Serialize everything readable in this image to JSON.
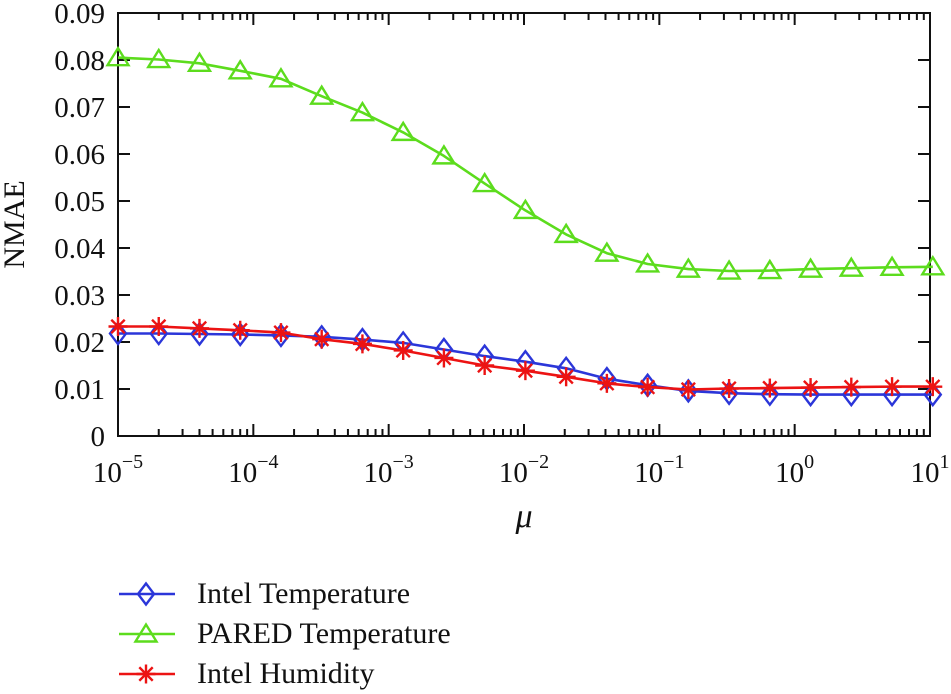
{
  "figure": {
    "background": "#ffffff",
    "axis_color": "#111111",
    "text_color": "#111111"
  },
  "chart_data": {
    "type": "line",
    "title": "",
    "xlabel": "μ",
    "ylabel": "NMAE",
    "x_scale": "log",
    "xlim": [
      1e-05,
      10
    ],
    "ylim": [
      0,
      0.09
    ],
    "grid": false,
    "legend_position": "below-left",
    "x_ticks": [
      1e-05,
      0.0001,
      0.001,
      0.01,
      0.1,
      1,
      10
    ],
    "x_tick_exponents": [
      -5,
      -4,
      -3,
      -2,
      -1,
      0,
      1
    ],
    "y_ticks": [
      0,
      0.01,
      0.02,
      0.03,
      0.04,
      0.05,
      0.06,
      0.07,
      0.08,
      0.09
    ],
    "y_tick_labels": [
      "0",
      "0.01",
      "0.02",
      "0.03",
      "0.04",
      "0.05",
      "0.06",
      "0.07",
      "0.08",
      "0.09"
    ],
    "x": [
      1e-05,
      2e-05,
      4e-05,
      8e-05,
      0.00016,
      0.00032,
      0.00064,
      0.00128,
      0.00256,
      0.00512,
      0.01024,
      0.02048,
      0.04096,
      0.08192,
      0.16384,
      0.32768,
      0.65536,
      1.31072,
      2.62144,
      5.24288,
      10.48576
    ],
    "series": [
      {
        "name": "Intel Temperature",
        "color": "#2b36d9",
        "marker": "diamond",
        "values": [
          0.0218,
          0.0218,
          0.0217,
          0.0216,
          0.0214,
          0.0211,
          0.0205,
          0.0198,
          0.0184,
          0.017,
          0.0158,
          0.0144,
          0.0122,
          0.0108,
          0.0096,
          0.0091,
          0.0089,
          0.0088,
          0.0088,
          0.0088,
          0.0088
        ]
      },
      {
        "name": "PARED Temperature",
        "color": "#5cdc1d",
        "marker": "triangle",
        "values": [
          0.0805,
          0.0801,
          0.0793,
          0.0777,
          0.076,
          0.0723,
          0.0688,
          0.0646,
          0.0596,
          0.0537,
          0.048,
          0.0429,
          0.0389,
          0.0366,
          0.0355,
          0.0351,
          0.0352,
          0.0355,
          0.0357,
          0.0359,
          0.036
        ]
      },
      {
        "name": "Intel Humidity",
        "color": "#ec1313",
        "marker": "asterisk",
        "values": [
          0.0233,
          0.0233,
          0.0229,
          0.0225,
          0.022,
          0.0206,
          0.0196,
          0.0182,
          0.0166,
          0.015,
          0.0139,
          0.0126,
          0.0112,
          0.0104,
          0.0099,
          0.0101,
          0.0102,
          0.0103,
          0.0104,
          0.0105,
          0.0105
        ]
      }
    ]
  }
}
